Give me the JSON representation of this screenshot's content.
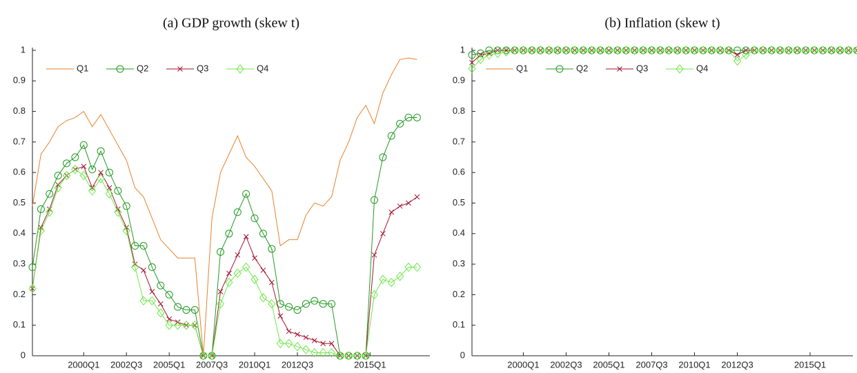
{
  "chart_data": [
    {
      "type": "line",
      "title": "(a) GDP growth (skew t)",
      "x": [
        0,
        2,
        4,
        6,
        8,
        10,
        12,
        14,
        16,
        18,
        20,
        22,
        24,
        26,
        28,
        30,
        32,
        34,
        36,
        38,
        40,
        42,
        44,
        46,
        48,
        50,
        52,
        54,
        56,
        58,
        60,
        62,
        64,
        66,
        68,
        70,
        72,
        74,
        76,
        78,
        80,
        82,
        84,
        86,
        88,
        90
      ],
      "xlim": [
        0,
        93
      ],
      "xticks": [
        {
          "value": 12,
          "label": "2000Q1"
        },
        {
          "value": 22,
          "label": "2002Q3"
        },
        {
          "value": 32,
          "label": "2005Q1"
        },
        {
          "value": 42,
          "label": "2007Q3"
        },
        {
          "value": 52,
          "label": "2010Q1"
        },
        {
          "value": 62,
          "label": "2012Q3"
        },
        {
          "value": 79,
          "label": "2015Q1"
        }
      ],
      "ylim": [
        0,
        1
      ],
      "yticks": [
        0,
        0.1,
        0.2,
        0.3,
        0.4,
        0.5,
        0.6,
        0.7,
        0.8,
        0.9,
        1
      ],
      "legend": "top-left",
      "series": [
        {
          "name": "Q1",
          "color": "#e6822a",
          "marker": "none",
          "values": [
            0.49,
            0.66,
            0.7,
            0.75,
            0.77,
            0.78,
            0.8,
            0.75,
            0.79,
            0.74,
            0.69,
            0.64,
            0.55,
            0.52,
            0.45,
            0.38,
            0.35,
            0.32,
            0.32,
            0.32,
            0,
            0.45,
            0.6,
            0.66,
            0.72,
            0.65,
            0.62,
            0.58,
            0.54,
            0.36,
            0.38,
            0.38,
            0.46,
            0.5,
            0.49,
            0.52,
            0.64,
            0.7,
            0.78,
            0.82,
            0.76,
            0.86,
            0.92,
            0.97,
            0.975,
            0.97
          ]
        },
        {
          "name": "Q2",
          "color": "#1f9a1f",
          "marker": "circle",
          "values": [
            0.29,
            0.48,
            0.53,
            0.59,
            0.63,
            0.65,
            0.69,
            0.61,
            0.67,
            0.6,
            0.54,
            0.49,
            0.36,
            0.36,
            0.29,
            0.23,
            0.2,
            0.16,
            0.15,
            0.15,
            0,
            0,
            0.34,
            0.4,
            0.47,
            0.53,
            0.45,
            0.4,
            0.35,
            0.17,
            0.16,
            0.15,
            0.17,
            0.18,
            0.17,
            0.17,
            0,
            0,
            0,
            0,
            0.51,
            0.65,
            0.72,
            0.76,
            0.78,
            0.78
          ]
        },
        {
          "name": "Q3",
          "color": "#a2142f",
          "marker": "x",
          "values": [
            0.22,
            0.42,
            0.48,
            0.56,
            0.59,
            0.61,
            0.62,
            0.55,
            0.6,
            0.55,
            0.48,
            0.42,
            0.3,
            0.28,
            0.21,
            0.17,
            0.12,
            0.11,
            0.1,
            0.1,
            0,
            0,
            0.21,
            0.27,
            0.33,
            0.39,
            0.32,
            0.28,
            0.24,
            0.13,
            0.08,
            0.07,
            0.06,
            0.05,
            0.04,
            0.04,
            0,
            0,
            0,
            0,
            0.33,
            0.4,
            0.47,
            0.49,
            0.5,
            0.52
          ]
        },
        {
          "name": "Q4",
          "color": "#6ee84a",
          "marker": "diamond",
          "values": [
            0.22,
            0.41,
            0.47,
            0.55,
            0.59,
            0.61,
            0.59,
            0.54,
            0.58,
            0.53,
            0.47,
            0.41,
            0.29,
            0.18,
            0.18,
            0.14,
            0.1,
            0.1,
            0.1,
            0.1,
            0,
            0,
            0.17,
            0.24,
            0.27,
            0.29,
            0.25,
            0.19,
            0.17,
            0.04,
            0.04,
            0.03,
            0.02,
            0.01,
            0.01,
            0.01,
            0,
            0,
            0,
            0,
            0.2,
            0.25,
            0.24,
            0.26,
            0.29,
            0.29
          ]
        }
      ]
    },
    {
      "type": "line",
      "title": "(b) Inflation (skew t)",
      "x": [
        0,
        2,
        4,
        6,
        8,
        10,
        12,
        14,
        16,
        18,
        20,
        22,
        24,
        26,
        28,
        30,
        32,
        34,
        36,
        38,
        40,
        42,
        44,
        46,
        48,
        50,
        52,
        54,
        56,
        58,
        60,
        62,
        64,
        66,
        68,
        70,
        72,
        74,
        76,
        78,
        80,
        82,
        84,
        86,
        88,
        90
      ],
      "xlim": [
        0,
        89
      ],
      "xticks": [
        {
          "value": 12,
          "label": "2000Q1"
        },
        {
          "value": 22,
          "label": "2002Q3"
        },
        {
          "value": 32,
          "label": "2005Q1"
        },
        {
          "value": 42,
          "label": "2007Q3"
        },
        {
          "value": 52,
          "label": "2010Q1"
        },
        {
          "value": 62,
          "label": "2012Q3"
        },
        {
          "value": 79,
          "label": "2015Q1"
        }
      ],
      "ylim": [
        0,
        1
      ],
      "yticks": [
        0,
        0.1,
        0.2,
        0.3,
        0.4,
        0.5,
        0.6,
        0.7,
        0.8,
        0.9,
        1
      ],
      "legend": "top-left",
      "series": [
        {
          "name": "Q1",
          "color": "#e6822a",
          "marker": "none",
          "values": [
            0.985,
            0.99,
            1,
            1,
            1,
            1,
            1,
            1,
            1,
            1,
            1,
            1,
            1,
            1,
            1,
            1,
            1,
            1,
            1,
            1,
            1,
            1,
            1,
            1,
            1,
            1,
            1,
            1,
            1,
            1,
            1,
            1,
            1,
            1,
            1,
            1,
            1,
            1,
            1,
            1,
            1,
            1,
            1,
            1,
            1,
            1
          ]
        },
        {
          "name": "Q2",
          "color": "#1f9a1f",
          "marker": "circle",
          "values": [
            0.985,
            0.99,
            1,
            1,
            1,
            1,
            1,
            1,
            1,
            1,
            1,
            1,
            1,
            1,
            1,
            1,
            1,
            1,
            1,
            1,
            1,
            1,
            1,
            1,
            1,
            1,
            1,
            1,
            1,
            1,
            1,
            1,
            1,
            1,
            1,
            1,
            1,
            1,
            1,
            1,
            1,
            1,
            1,
            1,
            1,
            1
          ]
        },
        {
          "name": "Q3",
          "color": "#a2142f",
          "marker": "x",
          "values": [
            0.96,
            0.985,
            0.99,
            1,
            1,
            1,
            1,
            1,
            1,
            1,
            1,
            1,
            1,
            1,
            1,
            1,
            1,
            1,
            1,
            1,
            1,
            1,
            1,
            1,
            1,
            1,
            1,
            1,
            1,
            1,
            1,
            0.985,
            1,
            1,
            1,
            1,
            1,
            1,
            1,
            1,
            1,
            1,
            1,
            1,
            1,
            1
          ]
        },
        {
          "name": "Q4",
          "color": "#6ee84a",
          "marker": "diamond",
          "values": [
            0.94,
            0.97,
            0.985,
            0.99,
            0.995,
            1,
            1,
            1,
            1,
            1,
            1,
            1,
            1,
            1,
            1,
            1,
            1,
            1,
            1,
            1,
            1,
            1,
            1,
            1,
            1,
            1,
            1,
            1,
            1,
            1,
            1,
            0.965,
            0.985,
            1,
            1,
            1,
            1,
            1,
            1,
            1,
            1,
            1,
            1,
            1,
            1,
            1
          ]
        }
      ]
    }
  ]
}
